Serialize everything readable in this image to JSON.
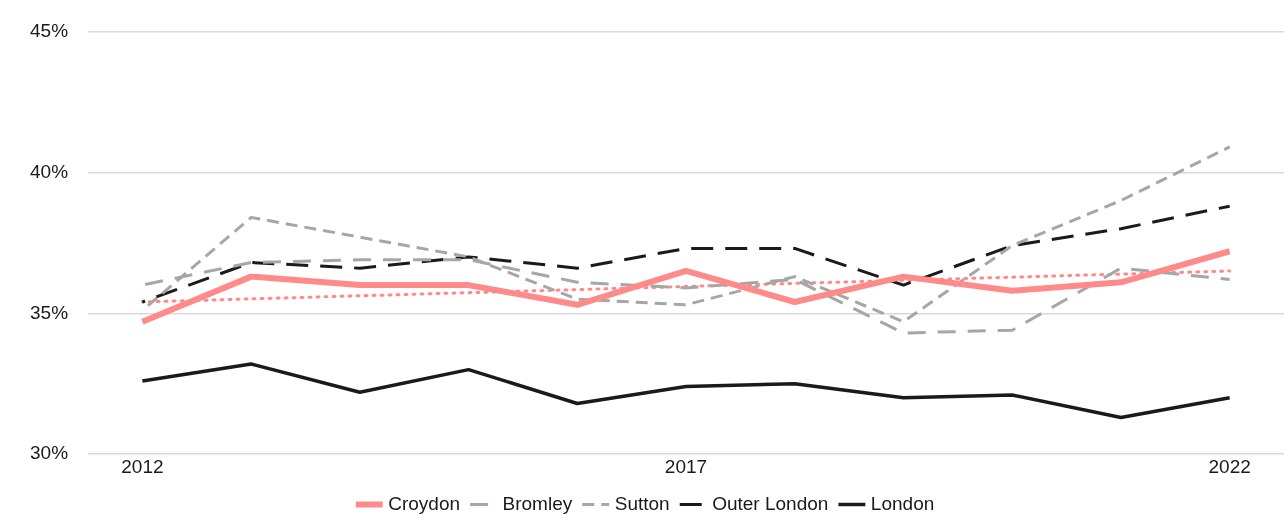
{
  "chart_data": {
    "type": "line",
    "x": [
      2012,
      2013,
      2014,
      2015,
      2016,
      2017,
      2018,
      2019,
      2020,
      2021,
      2022
    ],
    "xlim": [
      2011.5,
      2022.5
    ],
    "xticks": [
      2012,
      2017,
      2022
    ],
    "ylim": [
      30,
      45
    ],
    "yticks": [
      {
        "value": 30,
        "label": "30%"
      },
      {
        "value": 35,
        "label": "35%"
      },
      {
        "value": 40,
        "label": "40%"
      },
      {
        "value": 45,
        "label": "45%"
      }
    ],
    "grid": "y",
    "legend": "bottom",
    "marker": "none",
    "series": [
      {
        "name": "Croydon",
        "color": "#ff8a8a",
        "line_style": "solid",
        "values": [
          34.7,
          36.3,
          36.0,
          36.0,
          35.3,
          36.5,
          35.4,
          36.3,
          35.8,
          36.1,
          37.2
        ]
      },
      {
        "name": "Bromley",
        "color": "#a6a6a6",
        "line_style": "dashed",
        "values": [
          36.0,
          36.8,
          36.9,
          36.9,
          36.1,
          35.9,
          36.2,
          34.3,
          34.4,
          36.6,
          36.2
        ]
      },
      {
        "name": "Sutton",
        "color": "#a6a6a6",
        "line_style": "dashed",
        "values": [
          35.1,
          38.4,
          37.7,
          37.0,
          35.5,
          35.3,
          36.3,
          34.7,
          37.4,
          39.0,
          40.9
        ]
      },
      {
        "name": "Outer London",
        "color": "#1a1a1a",
        "line_style": "dashed",
        "values": [
          35.4,
          36.8,
          36.6,
          37.0,
          36.6,
          37.3,
          37.3,
          36.0,
          37.4,
          38.0,
          38.8
        ]
      },
      {
        "name": "London",
        "color": "#1a1a1a",
        "line_style": "solid",
        "values": [
          32.6,
          33.2,
          32.2,
          33.0,
          31.8,
          32.4,
          32.5,
          32.0,
          32.1,
          31.3,
          32.0
        ]
      },
      {
        "type": "line",
        "color": "#ff8a8a",
        "line_style": "dotted",
        "x": [
          2012,
          2022
        ],
        "values": [
          35.4,
          36.5
        ]
      }
    ]
  }
}
